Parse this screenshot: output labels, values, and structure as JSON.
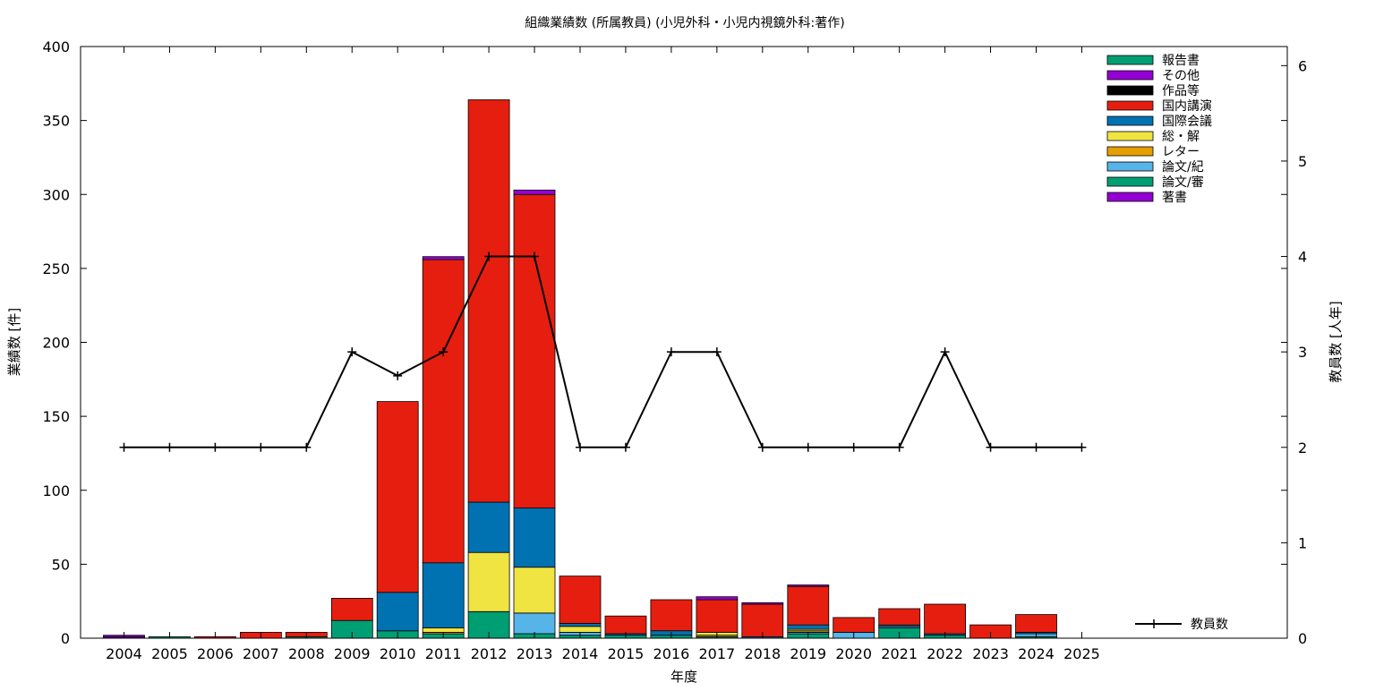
{
  "chart_data": {
    "type": "bar",
    "title": "組織業績数 (所属教員) (小児外科・小児内視鏡外科:著作)",
    "xlabel": "年度",
    "ylabel": "業績数 [件]",
    "y2label": "教員数 [人年]",
    "ylim": [
      0,
      400
    ],
    "y2lim": [
      0,
      6.2
    ],
    "yticks": [
      0,
      50,
      100,
      150,
      200,
      250,
      300,
      350,
      400
    ],
    "y2ticks": [
      0,
      1,
      2,
      3,
      4,
      5,
      6
    ],
    "legend_position": "top-right",
    "categories": [
      "2004",
      "2005",
      "2006",
      "2007",
      "2008",
      "2009",
      "2010",
      "2011",
      "2012",
      "2013",
      "2014",
      "2015",
      "2016",
      "2017",
      "2018",
      "2019",
      "2020",
      "2021",
      "2022",
      "2023",
      "2024",
      "2025"
    ],
    "series": [
      {
        "name": "著書",
        "color": "#9400d3",
        "values": [
          1,
          0,
          0,
          0,
          0,
          0,
          0,
          0,
          0,
          0,
          0,
          0,
          0,
          0,
          0,
          0,
          0,
          0,
          0,
          0,
          0,
          0
        ]
      },
      {
        "name": "論文/審",
        "color": "#009e73",
        "values": [
          0,
          1,
          0,
          0,
          1,
          12,
          5,
          3,
          18,
          3,
          2,
          2,
          2,
          1,
          0,
          3,
          0,
          7,
          2,
          0,
          1,
          0
        ]
      },
      {
        "name": "論文/紀",
        "color": "#56b4e9",
        "values": [
          0,
          0,
          0,
          0,
          0,
          0,
          0,
          0,
          0,
          14,
          2,
          0,
          0,
          0,
          0,
          1,
          4,
          1,
          0,
          0,
          2,
          0
        ]
      },
      {
        "name": "レター",
        "color": "#e69f00",
        "values": [
          0,
          0,
          0,
          0,
          0,
          0,
          0,
          1,
          0,
          0,
          0,
          0,
          0,
          1,
          0,
          1,
          0,
          0,
          0,
          0,
          0,
          0
        ]
      },
      {
        "name": "総・解",
        "color": "#f0e442",
        "values": [
          0,
          0,
          0,
          0,
          0,
          0,
          0,
          3,
          40,
          31,
          4,
          0,
          0,
          2,
          0,
          1,
          0,
          0,
          0,
          0,
          0,
          0
        ]
      },
      {
        "name": "国際会議",
        "color": "#0072b2",
        "values": [
          0,
          0,
          0,
          0,
          0,
          0,
          26,
          44,
          34,
          40,
          2,
          1,
          3,
          0,
          1,
          3,
          0,
          1,
          1,
          0,
          1,
          0
        ]
      },
      {
        "name": "国内講演",
        "color": "#e51e10",
        "values": [
          0,
          0,
          1,
          4,
          3,
          15,
          129,
          205,
          272,
          212,
          32,
          12,
          21,
          22,
          22,
          26,
          10,
          11,
          20,
          9,
          12,
          0
        ]
      },
      {
        "name": "作品等",
        "color": "#000000",
        "values": [
          0,
          0,
          0,
          0,
          0,
          0,
          0,
          0,
          0,
          0,
          0,
          0,
          0,
          0,
          0,
          0,
          0,
          0,
          0,
          0,
          0,
          0
        ]
      },
      {
        "name": "その他",
        "color": "#9400d3",
        "values": [
          1,
          0,
          0,
          0,
          0,
          0,
          0,
          2,
          0,
          3,
          0,
          0,
          0,
          2,
          1,
          1,
          0,
          0,
          0,
          0,
          0,
          0
        ]
      },
      {
        "name": "報告書",
        "color": "#009e73",
        "values": [
          0,
          0,
          0,
          0,
          0,
          0,
          0,
          0,
          0,
          0,
          0,
          0,
          0,
          0,
          0,
          0,
          0,
          0,
          0,
          0,
          0,
          0
        ]
      }
    ],
    "line_series": {
      "name": "教員数",
      "color": "#000000",
      "axis": "y2",
      "values": [
        2,
        2,
        2,
        2,
        2,
        3,
        2.75,
        3,
        4,
        4,
        2,
        2,
        3,
        3,
        2,
        2,
        2,
        2,
        3,
        2,
        2,
        2
      ]
    }
  }
}
